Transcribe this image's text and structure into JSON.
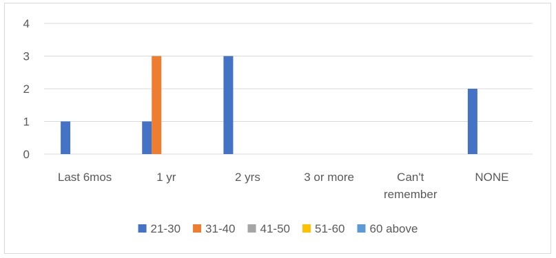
{
  "chart_data": {
    "type": "bar",
    "title": "",
    "xlabel": "",
    "ylabel": "",
    "ylim": [
      0,
      4
    ],
    "yticks": [
      0,
      1,
      2,
      3,
      4
    ],
    "grid": true,
    "legend_position": "bottom",
    "categories": [
      [
        "Last 6mos"
      ],
      [
        "1 yr"
      ],
      [
        "2 yrs"
      ],
      [
        "3 or more"
      ],
      [
        "Can't",
        "remember"
      ],
      [
        "NONE"
      ]
    ],
    "series": [
      {
        "name": "21-30",
        "color": "#4472c4",
        "values": [
          1,
          1,
          3,
          0,
          0,
          2
        ]
      },
      {
        "name": "31-40",
        "color": "#ed7d31",
        "values": [
          0,
          3,
          0,
          0,
          0,
          0
        ]
      },
      {
        "name": "41-50",
        "color": "#a5a5a5",
        "values": [
          0,
          0,
          0,
          0,
          0,
          0
        ]
      },
      {
        "name": "51-60",
        "color": "#ffc000",
        "values": [
          0,
          0,
          0,
          0,
          0,
          0
        ]
      },
      {
        "name": "60 above",
        "color": "#5b9bd5",
        "values": [
          0,
          0,
          0,
          0,
          0,
          0
        ]
      }
    ]
  }
}
